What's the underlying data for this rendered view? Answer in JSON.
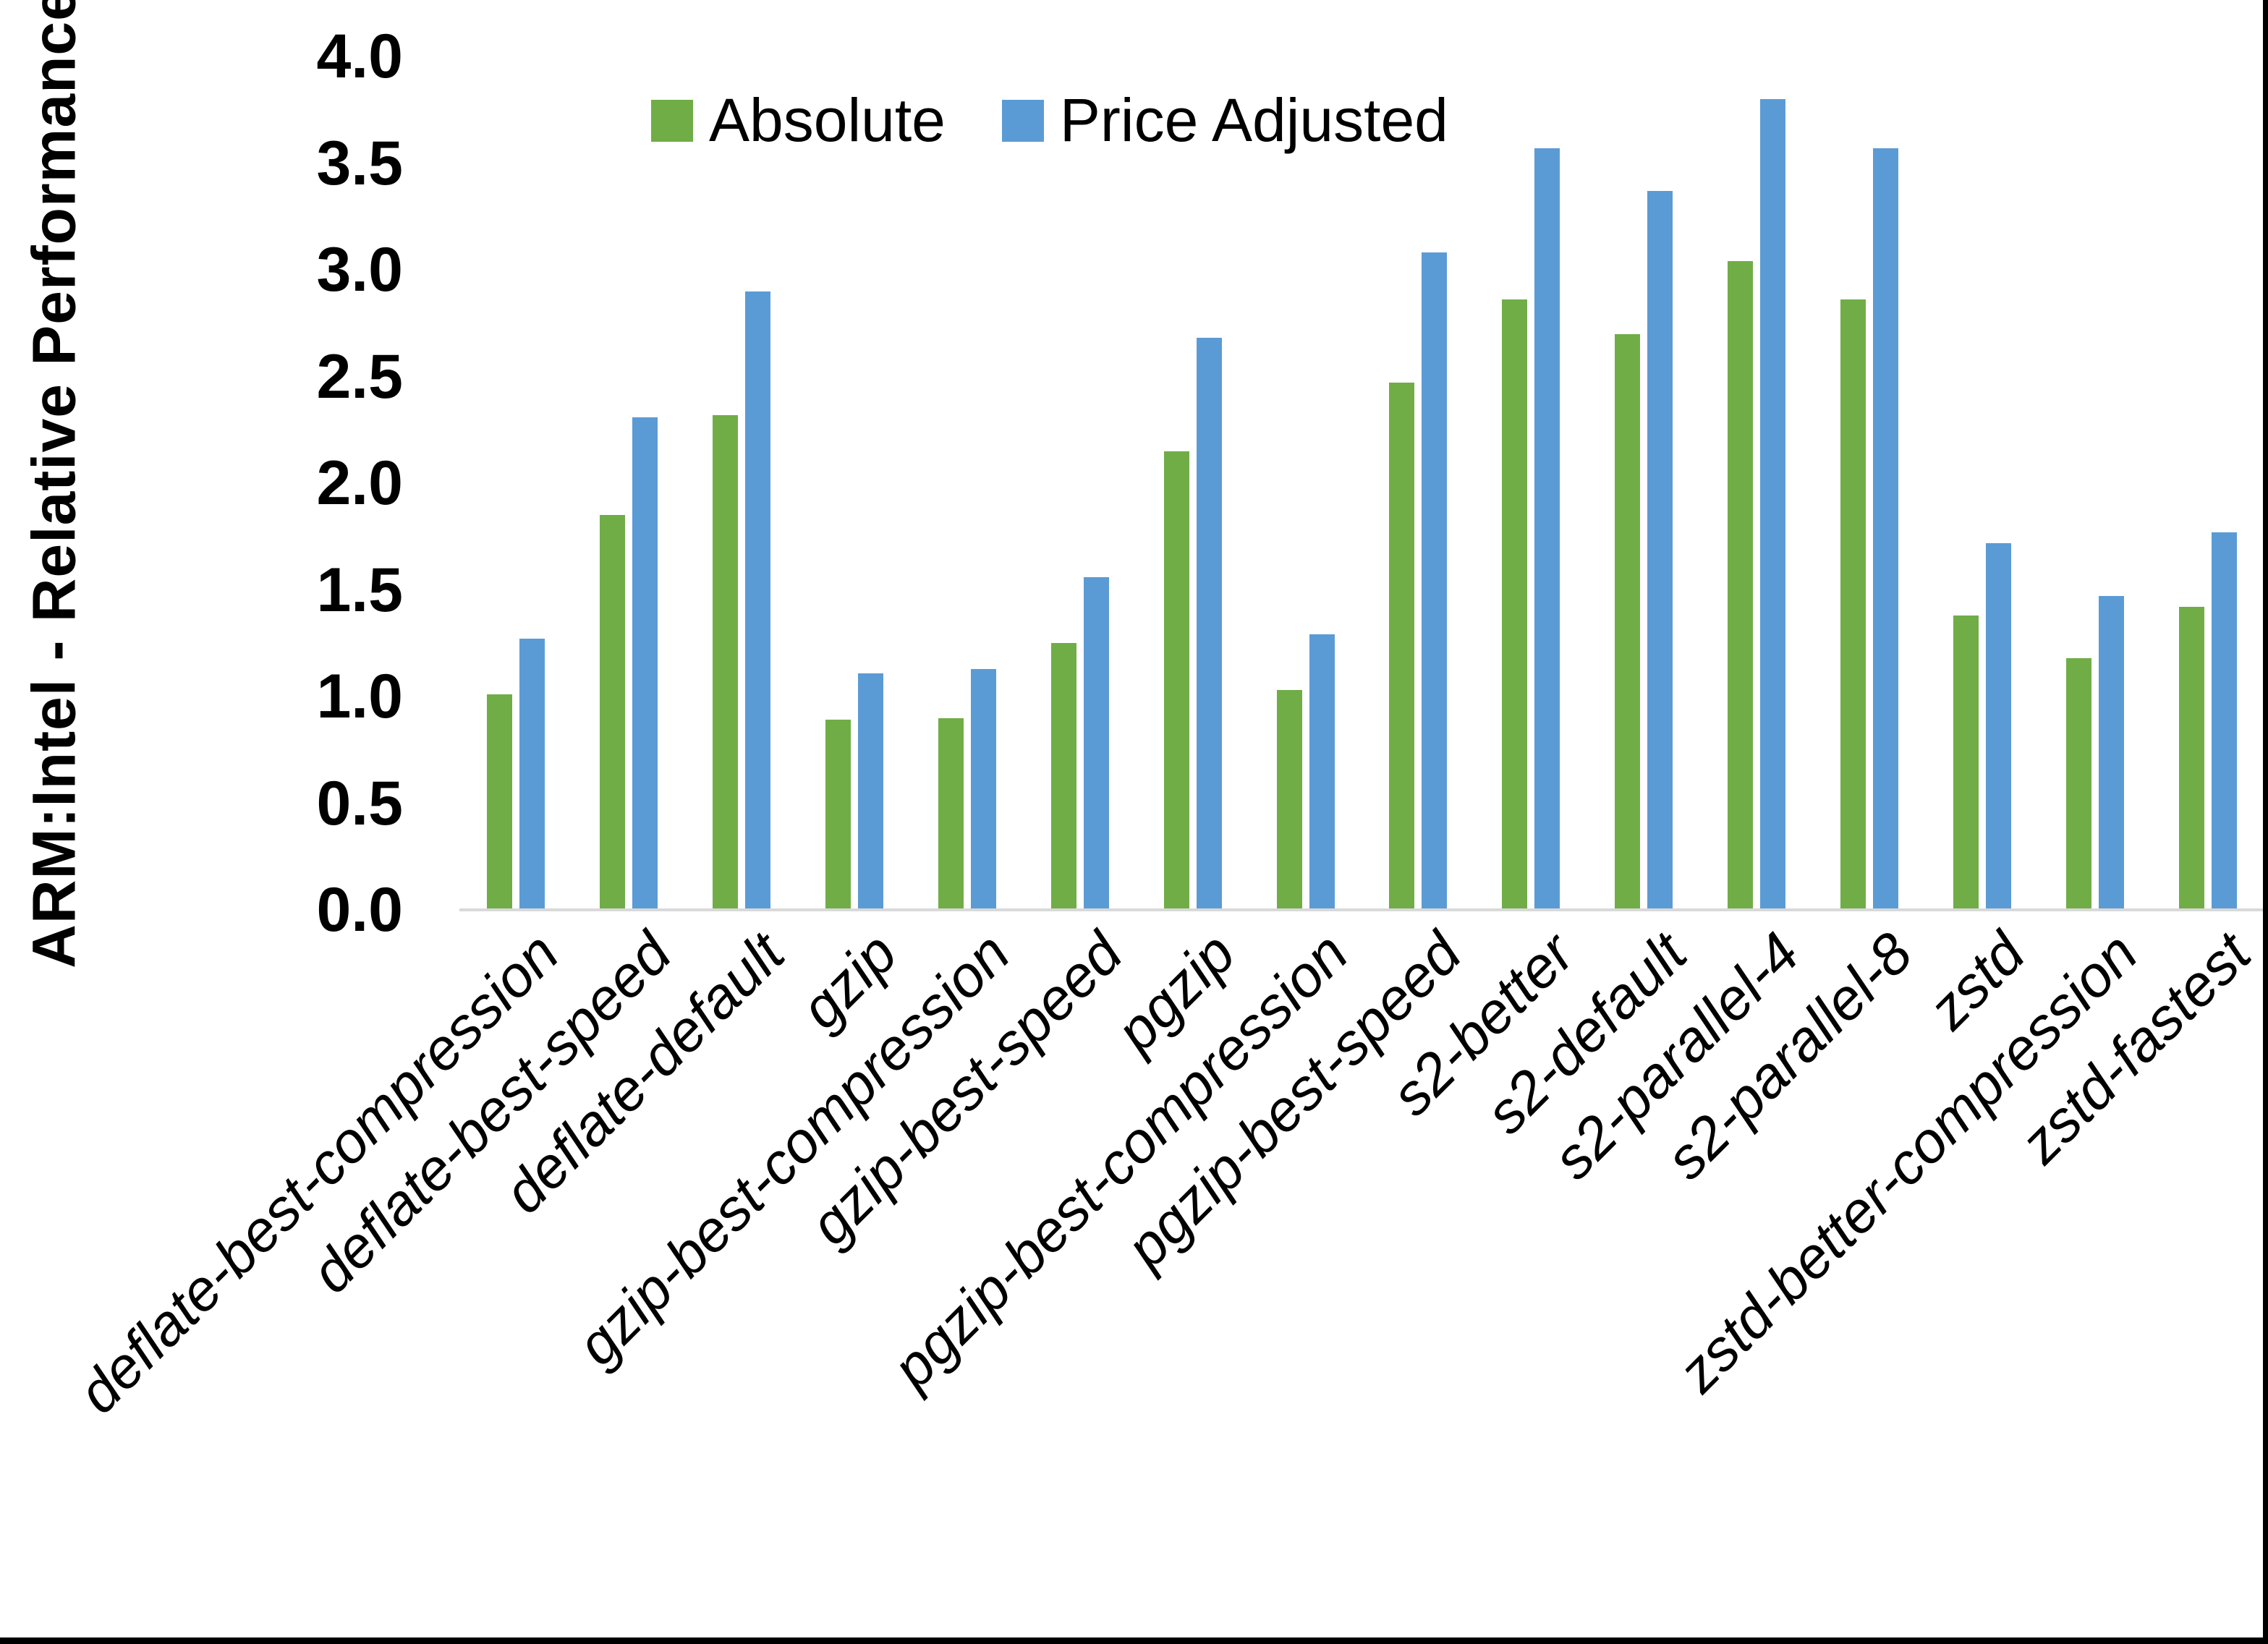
{
  "chart_data": {
    "type": "bar",
    "title": "",
    "ylabel": "ARM:Intel - Relative Performance",
    "xlabel": "",
    "ylim": [
      0.0,
      4.0
    ],
    "ytick_step": 0.5,
    "ytick_labels": [
      "0.0",
      "0.5",
      "1.0",
      "1.5",
      "2.0",
      "2.5",
      "3.0",
      "3.5",
      "4.0"
    ],
    "grid": false,
    "legend_position": "top-center",
    "categories": [
      "deflate-best-compression",
      "deflate-best-speed",
      "deflate-default",
      "gzip",
      "gzip-best-compression",
      "gzip-best-speed",
      "pgzip",
      "pgzip-best-compression",
      "pgzip-best-speed",
      "s2-better",
      "s2-default",
      "s2-parallel-4",
      "s2-parallel-8",
      "zstd",
      "zstd-better-compression",
      "zstd-fastest"
    ],
    "series": [
      {
        "name": "Absolute",
        "color": "#70AD47",
        "values": [
          1.01,
          1.85,
          2.32,
          0.89,
          0.9,
          1.25,
          2.15,
          1.03,
          2.47,
          2.86,
          2.7,
          3.04,
          2.86,
          1.38,
          1.18,
          1.42
        ]
      },
      {
        "name": "Price Adjusted",
        "color": "#5B9BD5",
        "values": [
          1.27,
          2.31,
          2.9,
          1.11,
          1.13,
          1.56,
          2.68,
          1.29,
          3.08,
          3.57,
          3.37,
          3.8,
          3.57,
          1.72,
          1.47,
          1.77
        ]
      }
    ],
    "colors": {
      "axis_line": "#d9d9d9",
      "text": "#000000",
      "background": "#ffffff",
      "frame": "#000000"
    }
  }
}
